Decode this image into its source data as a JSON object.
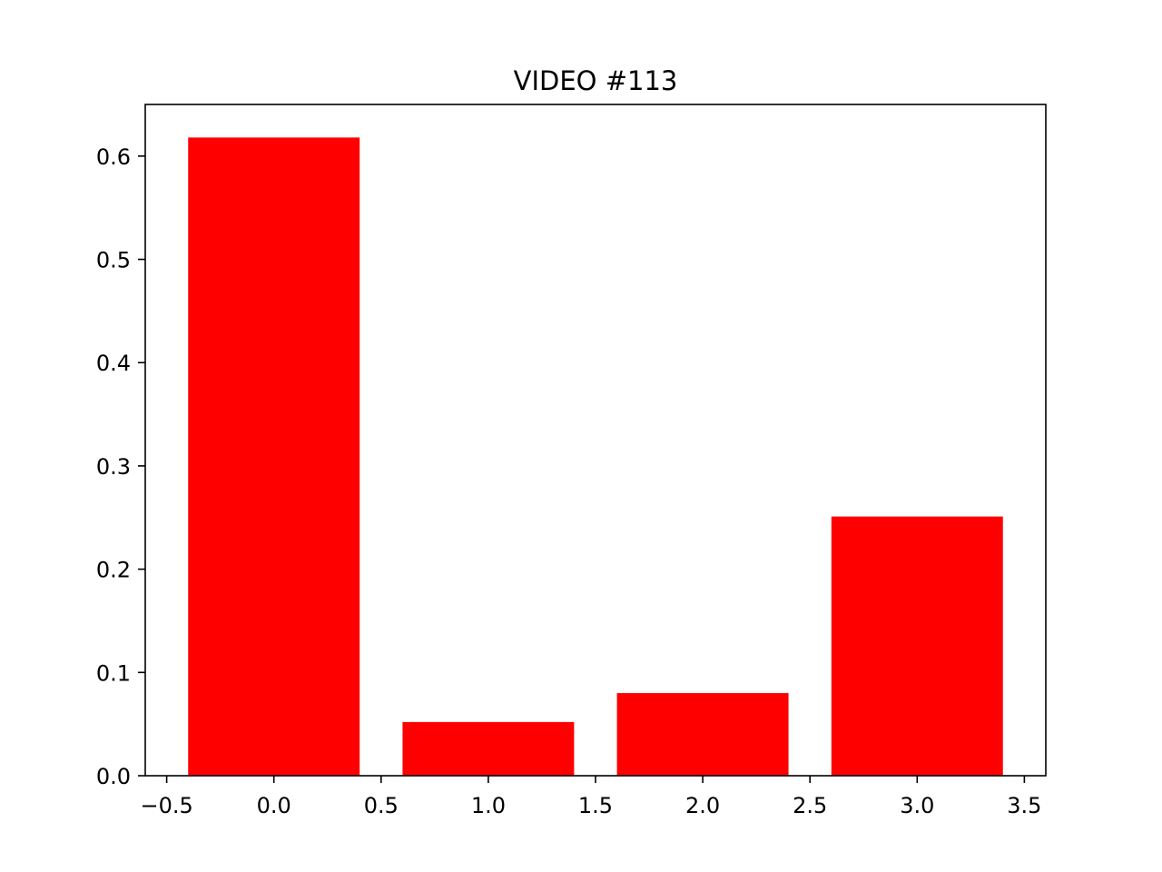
{
  "chart_data": {
    "type": "bar",
    "title": "VIDEO #113",
    "xlabel": "",
    "ylabel": "",
    "x": [
      0,
      1,
      2,
      3
    ],
    "values": [
      0.618,
      0.052,
      0.08,
      0.251
    ],
    "bar_width": 0.8,
    "xlim": [
      -0.6,
      3.6
    ],
    "ylim": [
      0,
      0.65
    ],
    "x_ticks": [
      -0.5,
      0.0,
      0.5,
      1.0,
      1.5,
      2.0,
      2.5,
      3.0,
      3.5
    ],
    "x_tick_labels": [
      "−0.5",
      "0.0",
      "0.5",
      "1.0",
      "1.5",
      "2.0",
      "2.5",
      "3.0",
      "3.5"
    ],
    "y_ticks": [
      0.0,
      0.1,
      0.2,
      0.3,
      0.4,
      0.5,
      0.6
    ],
    "y_tick_labels": [
      "0.0",
      "0.1",
      "0.2",
      "0.3",
      "0.4",
      "0.5",
      "0.6"
    ],
    "grid": false,
    "legend": "none",
    "colors": {
      "bar": "#ff0000",
      "axis": "#000000",
      "background": "#ffffff"
    }
  }
}
